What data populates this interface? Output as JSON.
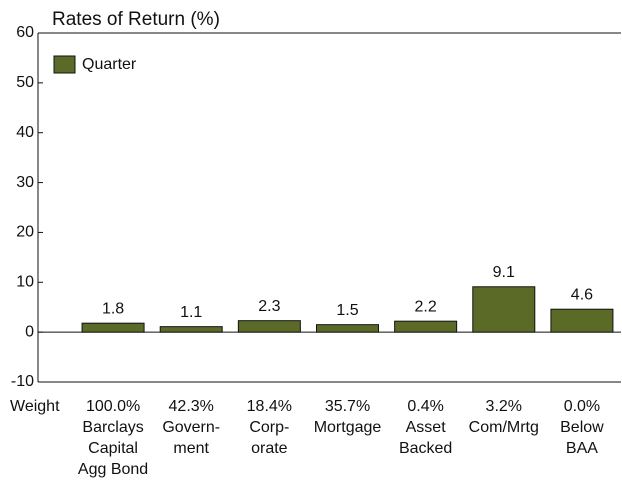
{
  "chart_data": {
    "type": "bar",
    "title": "Rates of Return (%)",
    "categories": [
      [
        "Barclays",
        "Capital",
        "Agg Bond"
      ],
      [
        "Govern-",
        "ment"
      ],
      [
        "Corp-",
        "orate"
      ],
      [
        "Mortgage"
      ],
      [
        "Asset",
        "Backed"
      ],
      [
        "Com/Mrtg"
      ],
      [
        "Below",
        "BAA"
      ]
    ],
    "weight_label": "Weight",
    "weights": [
      "100.0%",
      "42.3%",
      "18.4%",
      "35.7%",
      "0.4%",
      "3.2%",
      "0.0%"
    ],
    "series": [
      {
        "name": "Quarter",
        "color": "#5c6a28",
        "values": [
          1.8,
          1.1,
          2.3,
          1.5,
          2.2,
          9.1,
          4.6
        ]
      }
    ],
    "ylim": [
      -10,
      60
    ],
    "yticks": [
      -10,
      0,
      10,
      20,
      30,
      40,
      50,
      60
    ],
    "legend": "top-left"
  }
}
